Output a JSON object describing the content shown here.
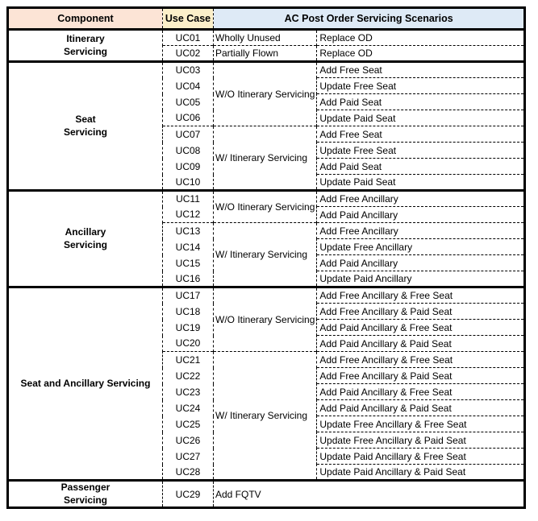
{
  "header": {
    "component": "Component",
    "use_case": "Use Case",
    "scenarios": "AC Post Order Servicing Scenarios"
  },
  "colors": {
    "component_header_bg": "#FCE4D6",
    "use_case_header_bg": "#FBEFC9",
    "scenarios_header_bg": "#DEEAF6",
    "border": "#000000",
    "text": "#000000",
    "background": "#FFFFFF"
  },
  "groups": [
    {
      "component": "Itinerary\nServicing",
      "subgroups": [
        {
          "condition": "Wholly Unused",
          "rows": [
            {
              "uc": "UC01",
              "scenario": "Replace OD"
            }
          ]
        },
        {
          "condition": "Partially Flown",
          "rows": [
            {
              "uc": "UC02",
              "scenario": "Replace OD"
            }
          ]
        }
      ]
    },
    {
      "component": "Seat\nServicing",
      "subgroups": [
        {
          "condition": "W/O Itinerary Servicing",
          "rows": [
            {
              "uc": "UC03",
              "scenario": "Add Free Seat"
            },
            {
              "uc": "UC04",
              "scenario": "Update Free Seat"
            },
            {
              "uc": "UC05",
              "scenario": "Add Paid Seat"
            },
            {
              "uc": "UC06",
              "scenario": "Update Paid Seat"
            }
          ]
        },
        {
          "condition": "W/ Itinerary Servicing",
          "rows": [
            {
              "uc": "UC07",
              "scenario": "Add Free Seat"
            },
            {
              "uc": "UC08",
              "scenario": "Update Free Seat"
            },
            {
              "uc": "UC09",
              "scenario": "Add Paid Seat"
            },
            {
              "uc": "UC10",
              "scenario": "Update Paid Seat"
            }
          ]
        }
      ]
    },
    {
      "component": "Ancillary\nServicing",
      "subgroups": [
        {
          "condition": "W/O Itinerary Servicing",
          "rows": [
            {
              "uc": "UC11",
              "scenario": "Add Free Ancillary"
            },
            {
              "uc": "UC12",
              "scenario": "Add Paid Ancillary"
            }
          ]
        },
        {
          "condition": "W/ Itinerary Servicing",
          "rows": [
            {
              "uc": "UC13",
              "scenario": "Add Free Ancillary"
            },
            {
              "uc": "UC14",
              "scenario": "Update Free Ancillary"
            },
            {
              "uc": "UC15",
              "scenario": "Add Paid Ancillary"
            },
            {
              "uc": "UC16",
              "scenario": "Update Paid Ancillary"
            }
          ]
        }
      ]
    },
    {
      "component": "Seat and Ancillary Servicing",
      "subgroups": [
        {
          "condition": "W/O Itinerary Servicing",
          "rows": [
            {
              "uc": "UC17",
              "scenario": "Add Free Ancillary & Free Seat"
            },
            {
              "uc": "UC18",
              "scenario": "Add Free Ancillary & Paid Seat"
            },
            {
              "uc": "UC19",
              "scenario": "Add Paid Ancillary & Free Seat"
            },
            {
              "uc": "UC20",
              "scenario": "Add Paid Ancillary & Paid Seat"
            }
          ]
        },
        {
          "condition": "W/ Itinerary Servicing",
          "rows": [
            {
              "uc": "UC21",
              "scenario": "Add Free Ancillary & Free Seat"
            },
            {
              "uc": "UC22",
              "scenario": "Add Free Ancillary & Paid Seat"
            },
            {
              "uc": "UC23",
              "scenario": "Add Paid Ancillary & Free Seat"
            },
            {
              "uc": "UC24",
              "scenario": "Add Paid Ancillary & Paid Seat"
            },
            {
              "uc": "UC25",
              "scenario": "Update Free Ancillary & Free Seat"
            },
            {
              "uc": "UC26",
              "scenario": "Update Free Ancillary & Paid Seat"
            },
            {
              "uc": "UC27",
              "scenario": "Update Paid Ancillary & Free Seat"
            },
            {
              "uc": "UC28",
              "scenario": "Update Paid Ancillary & Paid Seat"
            }
          ]
        }
      ]
    },
    {
      "component": "Passenger\nServicing",
      "tall": true,
      "subgroups": [
        {
          "condition": "Add FQTV",
          "merged": true,
          "rows": [
            {
              "uc": "UC29"
            }
          ]
        }
      ]
    }
  ]
}
